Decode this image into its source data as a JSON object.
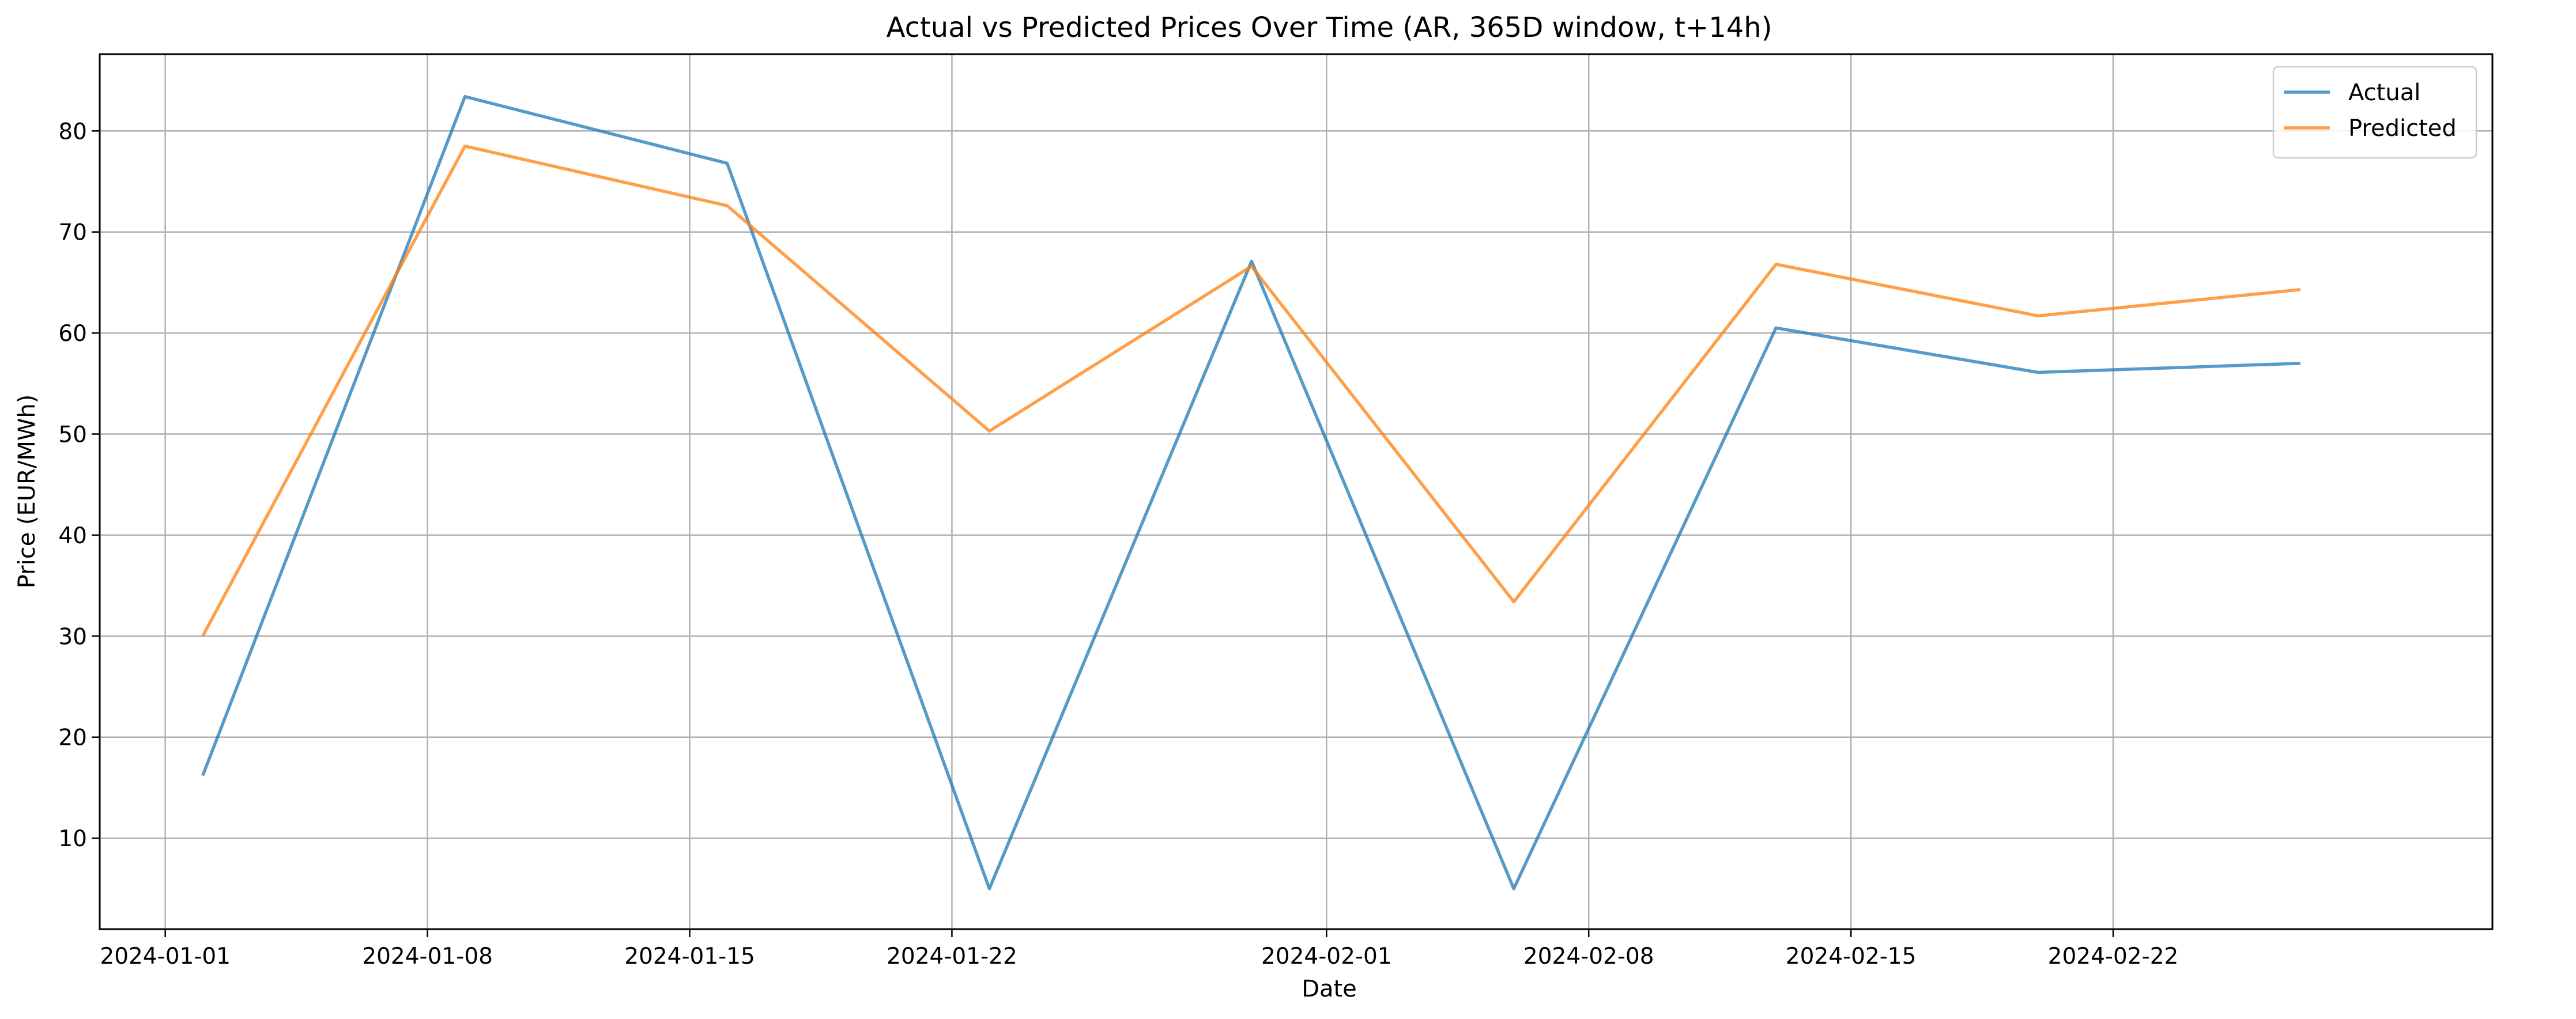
{
  "chart_data": {
    "type": "line",
    "title": "Actual vs Predicted Prices Over Time (AR, 365D window, t+14h)",
    "xlabel": "Date",
    "ylabel": "Price (EUR/MWh)",
    "x_tick_labels": [
      "2024-01-01",
      "2024-01-08",
      "2024-01-15",
      "2024-01-22",
      "2024-02-01",
      "2024-02-08",
      "2024-02-15",
      "2024-02-22"
    ],
    "y_ticks": [
      10,
      20,
      30,
      40,
      50,
      60,
      70,
      80
    ],
    "ylim": [
      1,
      87.6
    ],
    "xlim": [
      "2023-12-30 06:00",
      "2024-03-03 03:00"
    ],
    "grid": true,
    "legend_position": "top-right",
    "x": [
      "2024-01-02",
      "2024-01-09",
      "2024-01-16",
      "2024-01-23",
      "2024-01-30",
      "2024-02-06",
      "2024-02-13",
      "2024-02-20",
      "2024-02-27"
    ],
    "series": [
      {
        "name": "Actual",
        "color": "#1f77b4",
        "values": [
          16.2,
          83.4,
          76.8,
          5.0,
          67.1,
          5.0,
          60.5,
          56.1,
          57.0
        ]
      },
      {
        "name": "Predicted",
        "color": "#ff7f0e",
        "values": [
          30.0,
          78.5,
          72.6,
          50.3,
          66.6,
          33.4,
          66.8,
          61.7,
          64.3
        ]
      }
    ]
  }
}
